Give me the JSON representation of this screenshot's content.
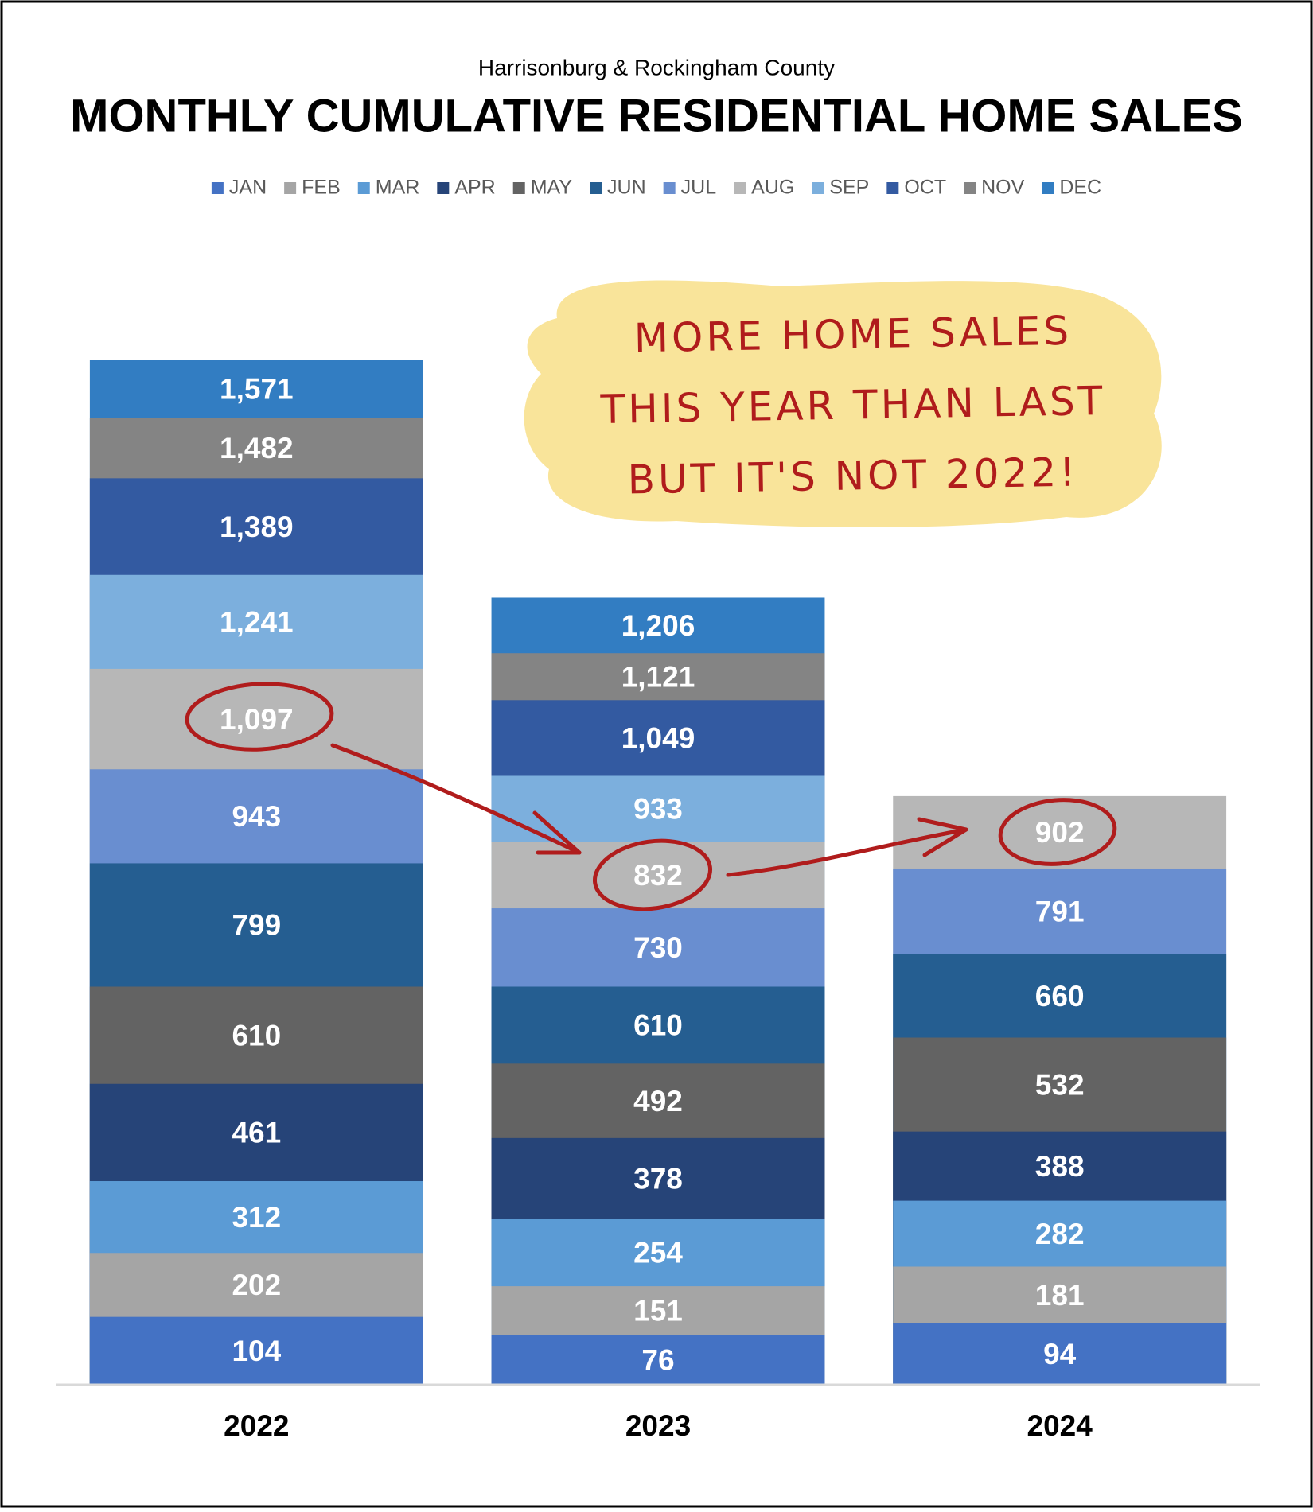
{
  "chart_data": {
    "type": "bar",
    "subtitle": "Harrisonburg & Rockingham County",
    "title": "MONTHLY CUMULATIVE RESIDENTIAL HOME SALES",
    "annotation": [
      "MORE HOME SALES",
      "THIS YEAR THAN LAST",
      "BUT IT'S NOT 2022!"
    ],
    "categories": [
      "2022",
      "2023",
      "2024"
    ],
    "series": [
      {
        "name": "JAN",
        "color": "#4472c4",
        "values": [
          104,
          76,
          94
        ]
      },
      {
        "name": "FEB",
        "color": "#a5a5a5",
        "values": [
          202,
          151,
          181
        ]
      },
      {
        "name": "MAR",
        "color": "#5b9bd5",
        "values": [
          312,
          254,
          282
        ]
      },
      {
        "name": "APR",
        "color": "#264478",
        "values": [
          461,
          378,
          388
        ]
      },
      {
        "name": "MAY",
        "color": "#636363",
        "values": [
          610,
          492,
          532
        ]
      },
      {
        "name": "JUN",
        "color": "#255e91",
        "values": [
          799,
          610,
          660
        ]
      },
      {
        "name": "JUL",
        "color": "#698ed0",
        "values": [
          943,
          730,
          791
        ]
      },
      {
        "name": "AUG",
        "color": "#b7b7b7",
        "values": [
          1097,
          832,
          902
        ],
        "value_labels": [
          "1,097",
          "832",
          "902"
        ]
      },
      {
        "name": "SEP",
        "color": "#7cafdd",
        "values": [
          1241,
          933,
          null
        ],
        "value_labels": [
          "1,241",
          "933",
          null
        ]
      },
      {
        "name": "OCT",
        "color": "#335aa1",
        "values": [
          1389,
          1049,
          null
        ],
        "value_labels": [
          "1,389",
          "1,049",
          null
        ]
      },
      {
        "name": "NOV",
        "color": "#848484",
        "values": [
          1482,
          1121,
          null
        ],
        "value_labels": [
          "1,482",
          "1,121",
          null
        ]
      },
      {
        "name": "DEC",
        "color": "#327dc2",
        "values": [
          1571,
          1206,
          null
        ],
        "value_labels": [
          "1,571",
          "1,206",
          null
        ]
      }
    ]
  }
}
